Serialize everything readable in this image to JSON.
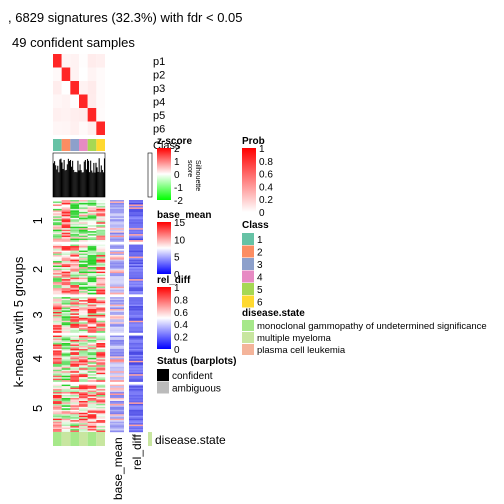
{
  "chart_data": {
    "type": "heatmap",
    "title": ", 6829 signatures (32.3%) with fdr < 0.05",
    "subtitle": "49 confident samples",
    "row_title": "k-means with 5 groups",
    "row_groups": [
      "1",
      "2",
      "3",
      "4",
      "5"
    ],
    "row_group_sizes": [
      1290,
      1540,
      1099,
      1430,
      1470
    ],
    "columns": 6,
    "column_classes": [
      1,
      2,
      3,
      4,
      5,
      6
    ],
    "top_annotation_labels": [
      "p1",
      "p2",
      "p3",
      "p4",
      "p5",
      "p6",
      "Class",
      "Silhouette\nscore"
    ],
    "bottom_annotation_label": "disease.state",
    "side_annotation_labels": [
      "base_mean",
      "rel_diff"
    ],
    "legends": {
      "prob": {
        "title": "Prob",
        "ticks": [
          "1",
          "0.8",
          "0.6",
          "0.4",
          "0.2",
          "0"
        ],
        "colors": [
          "#ff0000",
          "#ffffff"
        ]
      },
      "zscore": {
        "title": "z-score",
        "ticks": [
          "2",
          "1",
          "0",
          "-1",
          "-2"
        ],
        "colors": [
          "#ff0000",
          "#ffffff",
          "#00ff00"
        ]
      },
      "class": {
        "title": "Class",
        "entries": [
          {
            "label": "1",
            "color": "#66c2a5"
          },
          {
            "label": "2",
            "color": "#fc8d62"
          },
          {
            "label": "3",
            "color": "#8da0cb"
          },
          {
            "label": "4",
            "color": "#e78ac3"
          },
          {
            "label": "5",
            "color": "#a6d854"
          },
          {
            "label": "6",
            "color": "#ffd92f"
          }
        ]
      },
      "base_mean": {
        "title": "base_mean",
        "ticks": [
          "15",
          "10",
          "5",
          "0"
        ],
        "colors": [
          "#ff0000",
          "#ffffff",
          "#0000ff"
        ]
      },
      "rel_diff": {
        "title": "rel_diff",
        "ticks": [
          "1",
          "0.8",
          "0.6",
          "0.4",
          "0.2",
          "0"
        ],
        "colors": [
          "#ff0000",
          "#ffffff",
          "#0000ff"
        ]
      },
      "disease_state": {
        "title": "disease.state",
        "entries": [
          {
            "label": "monoclonal gammopathy of undetermined significance",
            "color": "#a6e88a"
          },
          {
            "label": "multiple myeloma",
            "color": "#c8e6a0"
          },
          {
            "label": "plasma cell leukemia",
            "color": "#f4b49a"
          }
        ]
      },
      "status": {
        "title": "Status (barplots)",
        "entries": [
          {
            "label": "confident",
            "color": "#000000"
          },
          {
            "label": "ambiguous",
            "color": "#bbbbbb"
          }
        ]
      }
    }
  }
}
